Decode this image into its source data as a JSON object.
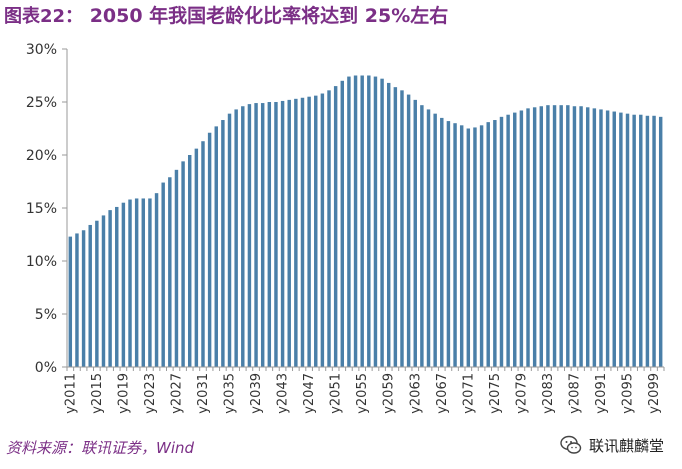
{
  "header": {
    "figure_label": "图表22：",
    "title": "2050 年我国老龄化比率将达到 25%左右"
  },
  "footer": {
    "source": "资料来源：联讯证券，Wind",
    "brand": "联讯麒麟堂"
  },
  "colors": {
    "title": "#7b2f86",
    "bar": "#4a7fa8",
    "axis": "#9a9a9a"
  },
  "chart_data": {
    "type": "bar",
    "title": "2050 年我国老龄化比率将达到 25%左右",
    "xlabel": "",
    "ylabel": "",
    "ylim": [
      0,
      30
    ],
    "yticks": [
      "0%",
      "5%",
      "10%",
      "15%",
      "20%",
      "25%",
      "30%"
    ],
    "grid": false,
    "tick_labels": [
      "y2011",
      "y2015",
      "y2019",
      "y2023",
      "y2027",
      "y2031",
      "y2035",
      "y2039",
      "y2043",
      "y2047",
      "y2051",
      "y2055",
      "y2059",
      "y2063",
      "y2067",
      "y2071",
      "y2075",
      "y2079",
      "y2083",
      "y2087",
      "y2091",
      "y2095",
      "y2099"
    ],
    "categories": [
      "y2011",
      "y2012",
      "y2013",
      "y2014",
      "y2015",
      "y2016",
      "y2017",
      "y2018",
      "y2019",
      "y2020",
      "y2021",
      "y2022",
      "y2023",
      "y2024",
      "y2025",
      "y2026",
      "y2027",
      "y2028",
      "y2029",
      "y2030",
      "y2031",
      "y2032",
      "y2033",
      "y2034",
      "y2035",
      "y2036",
      "y2037",
      "y2038",
      "y2039",
      "y2040",
      "y2041",
      "y2042",
      "y2043",
      "y2044",
      "y2045",
      "y2046",
      "y2047",
      "y2048",
      "y2049",
      "y2050",
      "y2051",
      "y2052",
      "y2053",
      "y2054",
      "y2055",
      "y2056",
      "y2057",
      "y2058",
      "y2059",
      "y2060",
      "y2061",
      "y2062",
      "y2063",
      "y2064",
      "y2065",
      "y2066",
      "y2067",
      "y2068",
      "y2069",
      "y2070",
      "y2071",
      "y2072",
      "y2073",
      "y2074",
      "y2075",
      "y2076",
      "y2077",
      "y2078",
      "y2079",
      "y2080",
      "y2081",
      "y2082",
      "y2083",
      "y2084",
      "y2085",
      "y2086",
      "y2087",
      "y2088",
      "y2089",
      "y2090",
      "y2091",
      "y2092",
      "y2093",
      "y2094",
      "y2095",
      "y2096",
      "y2097",
      "y2098",
      "y2099",
      "y2100"
    ],
    "values": [
      12.3,
      12.6,
      12.9,
      13.4,
      13.8,
      14.3,
      14.8,
      15.1,
      15.5,
      15.8,
      15.9,
      15.9,
      15.9,
      16.4,
      17.4,
      17.9,
      18.6,
      19.4,
      20.0,
      20.6,
      21.3,
      22.1,
      22.7,
      23.3,
      23.9,
      24.3,
      24.6,
      24.8,
      24.9,
      24.9,
      25.0,
      25.0,
      25.1,
      25.2,
      25.3,
      25.4,
      25.5,
      25.6,
      25.8,
      26.1,
      26.5,
      27.0,
      27.4,
      27.5,
      27.5,
      27.5,
      27.4,
      27.2,
      26.8,
      26.4,
      26.1,
      25.7,
      25.2,
      24.7,
      24.3,
      23.9,
      23.5,
      23.2,
      23.0,
      22.8,
      22.5,
      22.6,
      22.8,
      23.1,
      23.3,
      23.6,
      23.8,
      24.0,
      24.2,
      24.4,
      24.5,
      24.6,
      24.7,
      24.7,
      24.7,
      24.7,
      24.6,
      24.6,
      24.5,
      24.4,
      24.3,
      24.2,
      24.1,
      24.0,
      23.9,
      23.8,
      23.8,
      23.7,
      23.7,
      23.6
    ],
    "series": [
      {
        "name": "老龄化比率",
        "values_ref": "values"
      }
    ]
  }
}
